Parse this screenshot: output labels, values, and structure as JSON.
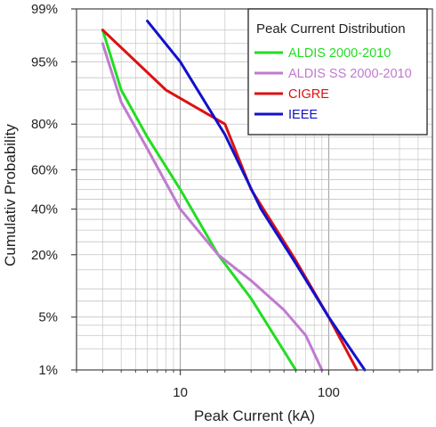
{
  "chart_data": {
    "type": "line",
    "title": "",
    "xlabel": "Peak Current (kA)",
    "ylabel": "Cumulativ Probability",
    "x_scale": "log",
    "xlim": [
      2,
      500
    ],
    "x_tick_labels": [
      {
        "value": 10,
        "label": "10"
      },
      {
        "value": 100,
        "label": "100"
      }
    ],
    "y_scale": "normal-probability",
    "ylim": [
      1,
      99
    ],
    "y_tick_labels": [
      {
        "value": 1,
        "label": "1%"
      },
      {
        "value": 5,
        "label": "5%"
      },
      {
        "value": 20,
        "label": "20%"
      },
      {
        "value": 40,
        "label": "40%"
      },
      {
        "value": 60,
        "label": "60%"
      },
      {
        "value": 80,
        "label": "80%"
      },
      {
        "value": 95,
        "label": "95%"
      },
      {
        "value": 99,
        "label": "99%"
      }
    ],
    "grid": true,
    "legend": {
      "title": "Peak Current Distribution",
      "position": "top-right"
    },
    "series": [
      {
        "name": "ALDIS 2000-2010",
        "color": "#22dd22",
        "points": [
          [
            3,
            98
          ],
          [
            4,
            90
          ],
          [
            6,
            75
          ],
          [
            10,
            50
          ],
          [
            18,
            20
          ],
          [
            30,
            8
          ],
          [
            60,
            1
          ]
        ]
      },
      {
        "name": "ALDIS SS 2000-2010",
        "color": "#c07ad0",
        "points": [
          [
            3,
            97
          ],
          [
            4,
            87
          ],
          [
            6,
            70
          ],
          [
            10,
            40
          ],
          [
            18,
            20
          ],
          [
            30,
            12
          ],
          [
            50,
            6
          ],
          [
            70,
            3
          ],
          [
            90,
            1
          ]
        ]
      },
      {
        "name": "CIGRE",
        "color": "#dd1111",
        "points": [
          [
            3,
            98
          ],
          [
            8,
            90
          ],
          [
            20,
            80
          ],
          [
            30,
            50
          ],
          [
            60,
            18
          ],
          [
            100,
            5
          ],
          [
            155,
            1
          ]
        ]
      },
      {
        "name": "IEEE",
        "color": "#1111cc",
        "points": [
          [
            6,
            98.5
          ],
          [
            10,
            95
          ],
          [
            20,
            76
          ],
          [
            35,
            40
          ],
          [
            60,
            17
          ],
          [
            100,
            5
          ],
          [
            175,
            1
          ]
        ]
      }
    ]
  }
}
